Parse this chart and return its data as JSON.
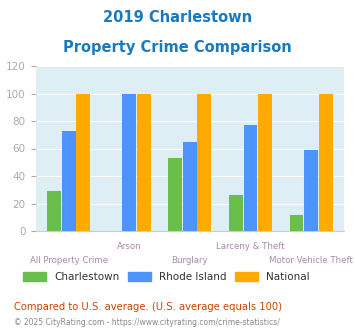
{
  "title_line1": "2019 Charlestown",
  "title_line2": "Property Crime Comparison",
  "title_color": "#1a7abf",
  "categories": [
    "All Property Crime",
    "Arson",
    "Burglary",
    "Larceny & Theft",
    "Motor Vehicle Theft"
  ],
  "charlestown": [
    29,
    0,
    53,
    26,
    12
  ],
  "rhode_island": [
    73,
    100,
    65,
    77,
    59
  ],
  "national": [
    100,
    100,
    100,
    100,
    100
  ],
  "color_charlestown": "#6abf4b",
  "color_rhode_island": "#4d94ff",
  "color_national": "#ffaa00",
  "ylim": [
    0,
    120
  ],
  "yticks": [
    0,
    20,
    40,
    60,
    80,
    100,
    120
  ],
  "bg_color": "#ddeef5",
  "footnote": "Compared to U.S. average. (U.S. average equals 100)",
  "footnote_color": "#cc4400",
  "copyright": "© 2025 CityRating.com - https://www.cityrating.com/crime-statistics/",
  "copyright_color": "#888888",
  "copyright_url_color": "#4488cc",
  "legend_labels": [
    "Charlestown",
    "Rhode Island",
    "National"
  ],
  "tick_label_color": "#aaaaaa",
  "x_label_color": "#aa88aa"
}
